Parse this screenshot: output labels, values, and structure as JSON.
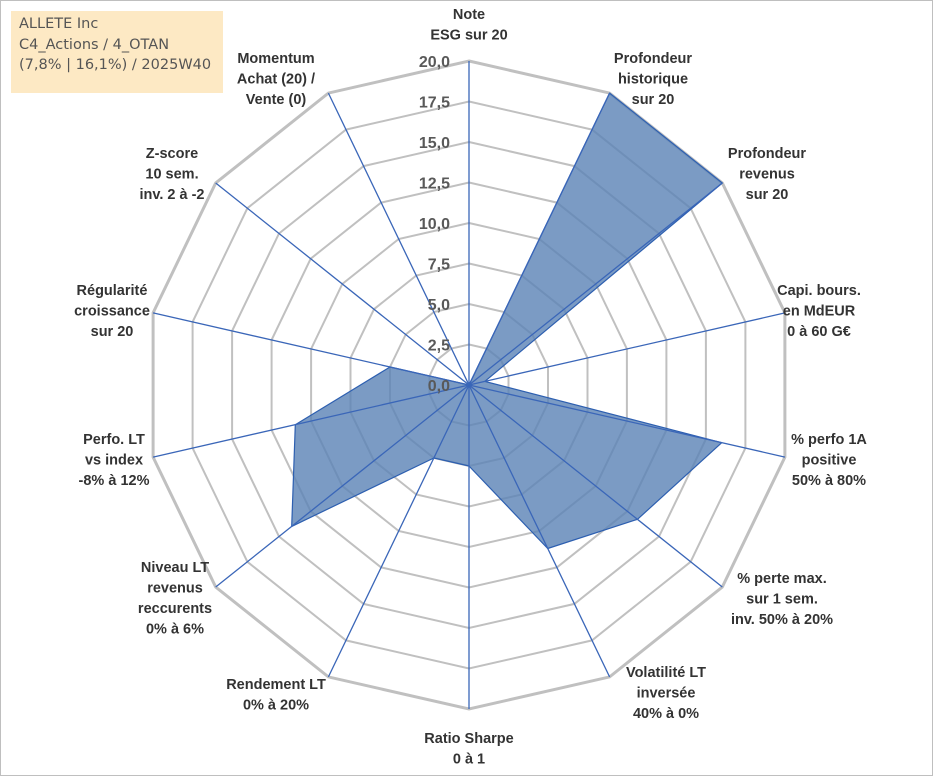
{
  "info": {
    "line1": "ALLETE Inc",
    "line2": "C4_Actions / 4_OTAN",
    "line3": "(7,8% | 16,1%) / 2025W40"
  },
  "chart_data": {
    "type": "radar",
    "title": "",
    "range": [
      0,
      20
    ],
    "tick_values": [
      0,
      2.5,
      5,
      7.5,
      10,
      12.5,
      15,
      17.5,
      20
    ],
    "tick_labels": [
      "0,0",
      "2,5",
      "5,0",
      "7,5",
      "10,0",
      "12,5",
      "15,0",
      "17,5",
      "20,0"
    ],
    "axes": [
      {
        "label": [
          "Note",
          "ESG sur 20"
        ]
      },
      {
        "label": [
          "Profondeur",
          "historique",
          "sur 20"
        ]
      },
      {
        "label": [
          "Profondeur",
          "revenus",
          "sur 20"
        ]
      },
      {
        "label": [
          "Capi. bours.",
          "en MdEUR",
          "0 à 60 G€"
        ]
      },
      {
        "label": [
          "% perfo 1A",
          "positive",
          "50% à 80%"
        ]
      },
      {
        "label": [
          "% perte max.",
          "sur 1 sem.",
          "inv. 50% à 20%"
        ]
      },
      {
        "label": [
          "Volatilité LT",
          "inversée",
          "40% à 0%"
        ]
      },
      {
        "label": [
          "Ratio Sharpe",
          "0 à 1"
        ]
      },
      {
        "label": [
          "Rendement LT",
          "0% à 20%"
        ]
      },
      {
        "label": [
          "Niveau LT",
          "revenus",
          "reccurents",
          "0% à 6%"
        ]
      },
      {
        "label": [
          "Perfo. LT",
          "vs index",
          "-8% à 12%"
        ]
      },
      {
        "label": [
          "Régularité",
          "croissance",
          "sur 20"
        ]
      },
      {
        "label": [
          "Z-score",
          "10 sem.",
          "inv. 2 à -2"
        ]
      },
      {
        "label": [
          "Momentum",
          "Achat (20) /",
          "Vente (0)"
        ]
      }
    ],
    "series": [
      {
        "name": "ALLETE Inc",
        "values": [
          0,
          20,
          20,
          1,
          16,
          13.3,
          11.2,
          5,
          5,
          14,
          11,
          5,
          0,
          0
        ]
      }
    ],
    "colors": {
      "fill": "#5a82b5",
      "fill_opacity": 0.8,
      "stroke": "#2d5fb0",
      "grid": "#c0c0c0",
      "spoke": "#3a66b8"
    }
  }
}
